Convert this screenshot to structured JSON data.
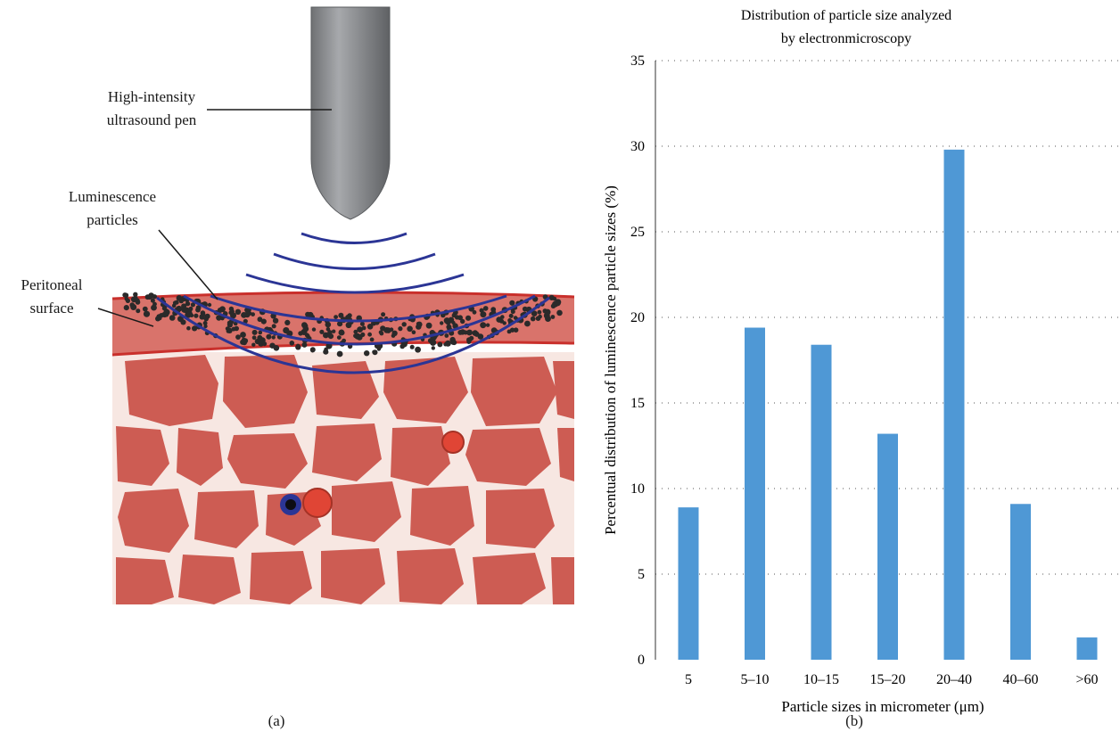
{
  "panel_a": {
    "caption": "(a)",
    "labels": {
      "pen_line1": "High-intensity",
      "pen_line2": "ultrasound pen",
      "particles_line1": "Luminescence",
      "particles_line2": "particles",
      "surface_line1": "Peritoneal",
      "surface_line2": "surface"
    },
    "colors": {
      "pen": "#8a8c8f",
      "waves": "#2b3595",
      "surface": "#d9736b",
      "surface_line": "#c9302c",
      "tissue_bg": "#f7e7e2",
      "cells": "#cd5c53",
      "particles": "#2a2a2a"
    }
  },
  "panel_b": {
    "caption": "(b)"
  },
  "chart_data": {
    "type": "bar",
    "title_line1": "Distribution of particle size analyzed",
    "title_line2": "by electronmicroscopy",
    "xlabel": "Particle sizes in micrometer (μm)",
    "ylabel": "Percentual distribution of luminescence particle sizes (%)",
    "categories": [
      "5",
      "5–10",
      "10–15",
      "15–20",
      "20–40",
      "40–60",
      ">60"
    ],
    "values": [
      8.9,
      19.4,
      18.4,
      13.2,
      29.8,
      9.1,
      1.3
    ],
    "ylim": [
      0,
      35
    ],
    "yticks": [
      0,
      5,
      10,
      15,
      20,
      25,
      30,
      35
    ],
    "grid": "dotted horizontal",
    "bar_color": "#4f98d5"
  }
}
